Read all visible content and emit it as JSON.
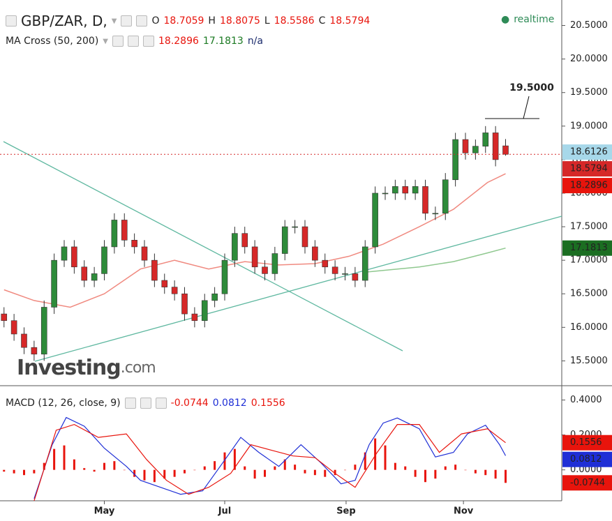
{
  "chart_data": [
    {
      "type": "candlestick",
      "title": "GBP/ZAR, D,",
      "ohlc_labels": [
        "O",
        "H",
        "L",
        "C"
      ],
      "status": "realtime",
      "indicator": "MA Cross (50, 200)",
      "indicator_extra": "n/a",
      "up_color": "#2e8b3a",
      "down_color": "#d62828",
      "x": [
        2,
        7,
        12,
        17,
        22,
        27,
        32,
        37,
        42,
        47,
        52,
        57,
        62,
        67,
        72,
        77,
        82,
        87,
        92,
        97,
        102,
        107,
        112,
        117,
        122,
        127,
        132,
        137,
        142,
        147,
        152,
        157,
        162,
        167,
        172,
        177,
        182,
        187,
        192,
        197,
        202,
        207,
        212,
        217,
        222,
        227,
        232,
        237,
        242,
        247,
        252
      ],
      "open": [
        16.2,
        16.1,
        15.9,
        15.7,
        15.6,
        16.3,
        17.0,
        17.2,
        16.9,
        16.7,
        16.8,
        17.2,
        17.6,
        17.3,
        17.2,
        17.0,
        16.7,
        16.6,
        16.5,
        16.2,
        16.1,
        16.4,
        16.5,
        17.0,
        17.4,
        17.2,
        16.9,
        16.8,
        17.1,
        17.5,
        17.5,
        17.2,
        17.0,
        16.9,
        16.8,
        16.8,
        16.7,
        17.2,
        18.0,
        18.0,
        18.1,
        18.0,
        18.1,
        17.7,
        17.7,
        18.2,
        18.8,
        18.6,
        18.7,
        18.9,
        18.7059
      ],
      "high": [
        16.3,
        16.2,
        16.0,
        15.8,
        16.4,
        17.1,
        17.3,
        17.3,
        17.0,
        16.9,
        17.3,
        17.7,
        17.7,
        17.4,
        17.3,
        17.1,
        16.8,
        16.7,
        16.6,
        16.3,
        16.5,
        16.6,
        17.1,
        17.5,
        17.5,
        17.3,
        17.0,
        17.2,
        17.6,
        17.6,
        17.6,
        17.3,
        17.1,
        17.0,
        16.9,
        16.9,
        17.3,
        18.1,
        18.1,
        18.2,
        18.2,
        18.2,
        18.2,
        17.8,
        18.3,
        18.9,
        18.9,
        18.8,
        19.0,
        19.0,
        18.8075
      ],
      "low": [
        16.0,
        15.8,
        15.6,
        15.5,
        15.5,
        16.2,
        16.9,
        16.8,
        16.6,
        16.6,
        16.7,
        17.1,
        17.2,
        17.1,
        16.9,
        16.6,
        16.5,
        16.4,
        16.1,
        16.0,
        16.0,
        16.3,
        16.4,
        16.9,
        17.1,
        16.8,
        16.7,
        16.7,
        17.0,
        17.4,
        17.1,
        16.9,
        16.8,
        16.7,
        16.7,
        16.6,
        16.6,
        17.1,
        17.9,
        17.9,
        17.9,
        17.9,
        17.6,
        17.6,
        17.6,
        18.1,
        18.5,
        18.5,
        18.6,
        18.4,
        18.5586
      ],
      "close": [
        16.1,
        15.9,
        15.7,
        15.6,
        16.3,
        17.0,
        17.2,
        16.9,
        16.7,
        16.8,
        17.2,
        17.6,
        17.3,
        17.2,
        17.0,
        16.7,
        16.6,
        16.5,
        16.2,
        16.1,
        16.4,
        16.5,
        17.0,
        17.4,
        17.2,
        16.9,
        16.8,
        17.1,
        17.5,
        17.5,
        17.2,
        17.0,
        16.9,
        16.8,
        16.8,
        16.7,
        17.2,
        18.0,
        18.0,
        18.1,
        18.0,
        18.1,
        17.7,
        17.7,
        18.2,
        18.8,
        18.6,
        18.7,
        18.9,
        18.5,
        18.5794
      ],
      "series": [
        {
          "color": "#f08a80",
          "badge_color": "#e8140c",
          "x": [
            2,
            17,
            35,
            52,
            70,
            87,
            104,
            122,
            139,
            157,
            174,
            191,
            209,
            226,
            243,
            252
          ],
          "values": [
            16.56,
            16.4,
            16.3,
            16.5,
            16.87,
            17.0,
            16.87,
            16.98,
            16.93,
            16.95,
            17.06,
            17.24,
            17.5,
            17.76,
            18.16,
            18.2896
          ]
        },
        {
          "color": "#8fc88f",
          "badge_color": "#1b6e22",
          "x": [
            181,
            209,
            226,
            243,
            252
          ],
          "values": [
            16.82,
            16.9,
            16.98,
            17.11,
            17.1813
          ]
        }
      ],
      "last_price": 18.6126,
      "last_price_color": "#a7d8ea",
      "annotation": "19.5000",
      "watermark": [
        "Investing",
        ".com"
      ],
      "xlim": [
        0,
        280
      ],
      "ylim": [
        15.13,
        20.88
      ],
      "yticks": [
        {
          "value": 20.5,
          "label": "20.5000"
        },
        {
          "value": 20.0,
          "label": "20.0000"
        },
        {
          "value": 19.5,
          "label": "19.5000"
        },
        {
          "value": 19.0,
          "label": "19.0000"
        },
        {
          "value": 18.5,
          "label": "18.5000"
        },
        {
          "value": 18.0,
          "label": "18.0000"
        },
        {
          "value": 17.5,
          "label": "17.5000"
        },
        {
          "value": 17.0,
          "label": "17.0000"
        },
        {
          "value": 16.5,
          "label": "16.5000"
        },
        {
          "value": 16.0,
          "label": "16.0000"
        },
        {
          "value": 15.5,
          "label": "15.5000"
        }
      ]
    },
    {
      "type": "macd",
      "title": "MACD (12, 26, close, 9)",
      "hist_color": "#e8140c",
      "x": [
        2,
        7,
        12,
        17,
        22,
        27,
        32,
        37,
        42,
        47,
        52,
        57,
        62,
        67,
        72,
        77,
        82,
        87,
        92,
        97,
        102,
        107,
        112,
        117,
        122,
        127,
        132,
        137,
        142,
        147,
        152,
        157,
        162,
        167,
        172,
        177,
        182,
        187,
        192,
        197,
        202,
        207,
        212,
        217,
        222,
        227,
        232,
        237,
        242,
        247,
        252
      ],
      "values": [
        -0.01,
        -0.02,
        -0.03,
        -0.02,
        0.04,
        0.12,
        0.14,
        0.06,
        0.01,
        -0.01,
        0.04,
        0.05,
        0.0,
        -0.04,
        -0.06,
        -0.07,
        -0.05,
        -0.04,
        -0.02,
        0.0,
        0.02,
        0.05,
        0.1,
        0.12,
        0.02,
        -0.05,
        -0.04,
        0.02,
        0.06,
        0.03,
        -0.02,
        -0.03,
        -0.04,
        -0.03,
        0.0,
        0.03,
        0.1,
        0.18,
        0.14,
        0.04,
        0.02,
        -0.04,
        -0.07,
        -0.05,
        0.02,
        0.03,
        0.0,
        -0.02,
        -0.03,
        -0.05,
        -0.0744
      ],
      "series": [
        {
          "color": "#1f2fd6",
          "x": [
            17,
            26,
            33,
            42,
            52,
            63,
            70,
            80,
            90,
            101,
            111,
            120,
            129,
            139,
            150,
            160,
            170,
            177,
            184,
            191,
            198,
            209,
            217,
            226,
            233,
            242,
            249,
            252
          ],
          "values": [
            -0.165,
            0.144,
            0.3,
            0.25,
            0.124,
            0.02,
            -0.06,
            -0.1,
            -0.14,
            -0.12,
            0.04,
            0.186,
            0.1,
            0.02,
            0.144,
            0.04,
            -0.08,
            -0.06,
            0.144,
            0.268,
            0.297,
            0.235,
            0.074,
            0.1,
            0.206,
            0.256,
            0.144,
            0.0812
          ]
        },
        {
          "color": "#e8140c",
          "x": [
            17,
            28,
            37,
            49,
            63,
            73,
            83,
            94,
            104,
            115,
            125,
            136,
            146,
            157,
            167,
            177,
            188,
            198,
            209,
            219,
            230,
            243,
            252
          ],
          "values": [
            -0.177,
            0.227,
            0.26,
            0.186,
            0.206,
            0.06,
            -0.06,
            -0.14,
            -0.1,
            -0.02,
            0.144,
            0.11,
            0.08,
            0.07,
            -0.02,
            -0.1,
            0.1,
            0.26,
            0.26,
            0.1,
            0.206,
            0.235,
            0.1556
          ]
        }
      ],
      "xlim": [
        0,
        280
      ],
      "ylim": [
        -0.177,
        0.474
      ],
      "yticks": [
        {
          "value": 0.4,
          "label": "0.4000"
        },
        {
          "value": 0.2,
          "label": "0.2000"
        },
        {
          "value": 0.0,
          "label": "0.0000"
        }
      ],
      "xticks": [
        {
          "value": 52,
          "label": "May"
        },
        {
          "value": 112,
          "label": "Jul"
        },
        {
          "value": 172.5,
          "label": "Sep"
        },
        {
          "value": 231,
          "label": "Nov"
        }
      ]
    }
  ]
}
